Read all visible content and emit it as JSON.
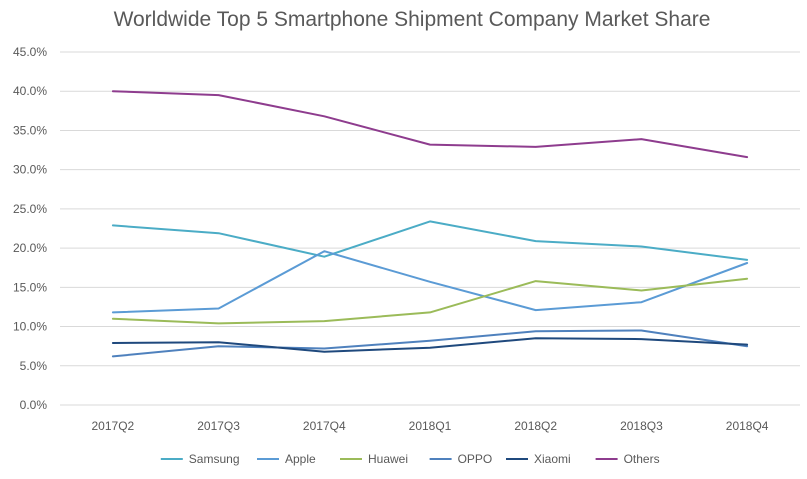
{
  "chart_data": {
    "type": "line",
    "title": "Worldwide Top 5 Smartphone Shipment Company Market Share",
    "xlabel": "",
    "ylabel": "",
    "categories": [
      "2017Q2",
      "2017Q3",
      "2017Q4",
      "2018Q1",
      "2018Q2",
      "2018Q3",
      "2018Q4"
    ],
    "ylim": [
      0,
      45
    ],
    "yticks": [
      0,
      5,
      10,
      15,
      20,
      25,
      30,
      35,
      40,
      45
    ],
    "ytick_labels": [
      "0.0%",
      "5.0%",
      "10.0%",
      "15.0%",
      "20.0%",
      "25.0%",
      "30.0%",
      "35.0%",
      "40.0%",
      "45.0%"
    ],
    "grid": true,
    "legend_position": "bottom",
    "series": [
      {
        "name": "Samsung",
        "color": "#4bacc6",
        "values": [
          22.9,
          21.9,
          18.9,
          23.4,
          20.9,
          20.2,
          18.5
        ]
      },
      {
        "name": "Apple",
        "color": "#5b9bd5",
        "values": [
          11.8,
          12.3,
          19.6,
          15.7,
          12.1,
          13.1,
          18.1
        ]
      },
      {
        "name": "Huawei",
        "color": "#9bbb59",
        "values": [
          11.0,
          10.4,
          10.7,
          11.8,
          15.8,
          14.6,
          16.1
        ]
      },
      {
        "name": "OPPO",
        "color": "#4f81bd",
        "values": [
          6.2,
          7.5,
          7.2,
          8.2,
          9.4,
          9.5,
          7.5
        ]
      },
      {
        "name": "Xiaomi",
        "color": "#1f497d",
        "values": [
          7.9,
          8.0,
          6.8,
          7.3,
          8.5,
          8.4,
          7.7
        ]
      },
      {
        "name": "Others",
        "color": "#8e3c8e",
        "values": [
          40.0,
          39.5,
          36.8,
          33.2,
          32.9,
          33.9,
          31.6
        ]
      }
    ]
  }
}
